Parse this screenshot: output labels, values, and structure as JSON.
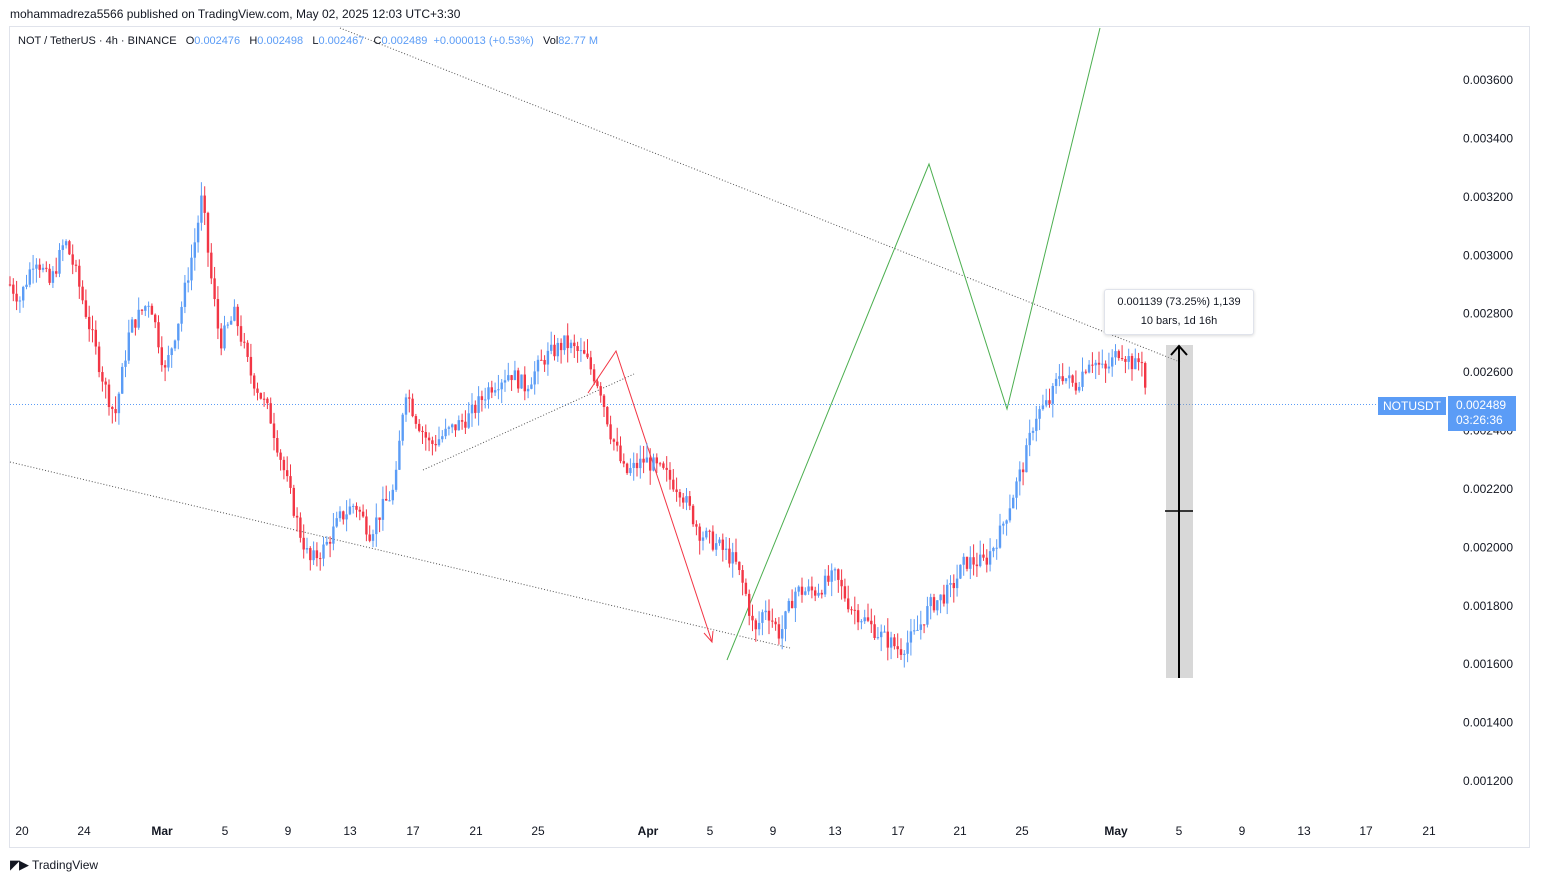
{
  "header": {
    "published_by": "mohammadreza5566 published on TradingView.com, May 02, 2025 12:03 UTC+3:30"
  },
  "legend": {
    "symbol": "NOT / TetherUS · 4h · BINANCE",
    "o_label": "O",
    "o_value": "0.002476",
    "h_label": "H",
    "h_value": "0.002498",
    "l_label": "L",
    "l_value": "0.002467",
    "c_label": "C",
    "c_value": "0.002489",
    "change": "+0.000013 (+0.53%)",
    "vol_label": "Vol",
    "vol_value": "82.77 M"
  },
  "price_badge": {
    "symbol": "NOTUSDT",
    "price": "0.002489",
    "countdown": "03:26:36"
  },
  "measure": {
    "line1": "0.001139 (73.25%) 1,139",
    "line2": "10 bars, 1d 16h"
  },
  "footer": {
    "brand": "TradingView"
  },
  "colors": {
    "up": "#5b9cf6",
    "down": "#f23645",
    "projection": "#4caf50",
    "arrow_red": "#f23645",
    "trend": "#555555"
  },
  "chart_data": {
    "type": "candlestick",
    "y_axis": {
      "ticks": [
        "0.003600",
        "0.003400",
        "0.003200",
        "0.003000",
        "0.002800",
        "0.002600",
        "0.002400",
        "0.002200",
        "0.002000",
        "0.001800",
        "0.001600",
        "0.001400",
        "0.001200"
      ],
      "range": [
        0.00108,
        0.00372
      ]
    },
    "x_axis": {
      "ticks": [
        "20",
        "24",
        "Mar",
        "5",
        "9",
        "13",
        "17",
        "21",
        "25",
        "Apr",
        "5",
        "9",
        "13",
        "17",
        "21",
        "25",
        "May",
        "5",
        "9",
        "13",
        "17",
        "21"
      ],
      "bold": [
        "Mar",
        "Apr",
        "May"
      ]
    },
    "current_price": 0.002489,
    "price_path": [
      [
        0,
        0.0029
      ],
      [
        10,
        0.00285
      ],
      [
        25,
        0.003
      ],
      [
        40,
        0.0029
      ],
      [
        55,
        0.00305
      ],
      [
        65,
        0.00295
      ],
      [
        80,
        0.00275
      ],
      [
        95,
        0.00255
      ],
      [
        105,
        0.00245
      ],
      [
        120,
        0.00275
      ],
      [
        140,
        0.00285
      ],
      [
        155,
        0.0026
      ],
      [
        170,
        0.0028
      ],
      [
        185,
        0.00305
      ],
      [
        192,
        0.0032
      ],
      [
        200,
        0.00295
      ],
      [
        210,
        0.0027
      ],
      [
        225,
        0.0028
      ],
      [
        240,
        0.0026
      ],
      [
        260,
        0.00245
      ],
      [
        275,
        0.00225
      ],
      [
        290,
        0.00205
      ],
      [
        300,
        0.00195
      ],
      [
        315,
        0.002
      ],
      [
        330,
        0.0021
      ],
      [
        345,
        0.00215
      ],
      [
        360,
        0.00205
      ],
      [
        375,
        0.00215
      ],
      [
        385,
        0.0022
      ],
      [
        395,
        0.00255
      ],
      [
        405,
        0.00245
      ],
      [
        420,
        0.00235
      ],
      [
        440,
        0.0024
      ],
      [
        460,
        0.00245
      ],
      [
        480,
        0.00255
      ],
      [
        500,
        0.0026
      ],
      [
        515,
        0.00255
      ],
      [
        535,
        0.00265
      ],
      [
        555,
        0.0027
      ],
      [
        575,
        0.00265
      ],
      [
        590,
        0.00255
      ],
      [
        600,
        0.0024
      ],
      [
        615,
        0.00225
      ],
      [
        635,
        0.0023
      ],
      [
        655,
        0.00225
      ],
      [
        670,
        0.0022
      ],
      [
        690,
        0.00205
      ],
      [
        710,
        0.002
      ],
      [
        725,
        0.00195
      ],
      [
        735,
        0.00185
      ],
      [
        745,
        0.0017
      ],
      [
        755,
        0.0018
      ],
      [
        770,
        0.0017
      ],
      [
        785,
        0.00185
      ],
      [
        805,
        0.00185
      ],
      [
        825,
        0.0019
      ],
      [
        840,
        0.0018
      ],
      [
        855,
        0.00175
      ],
      [
        870,
        0.0017
      ],
      [
        890,
        0.00165
      ],
      [
        905,
        0.0017
      ],
      [
        920,
        0.0018
      ],
      [
        940,
        0.00185
      ],
      [
        955,
        0.00195
      ],
      [
        975,
        0.00195
      ],
      [
        990,
        0.00205
      ],
      [
        1005,
        0.0022
      ],
      [
        1015,
        0.0023
      ],
      [
        1025,
        0.00245
      ],
      [
        1040,
        0.0025
      ],
      [
        1050,
        0.0026
      ],
      [
        1065,
        0.00255
      ],
      [
        1080,
        0.00265
      ],
      [
        1095,
        0.0026
      ],
      [
        1110,
        0.00268
      ],
      [
        1125,
        0.00262
      ],
      [
        1132,
        0.00265
      ],
      [
        1137,
        0.00249
      ]
    ]
  }
}
